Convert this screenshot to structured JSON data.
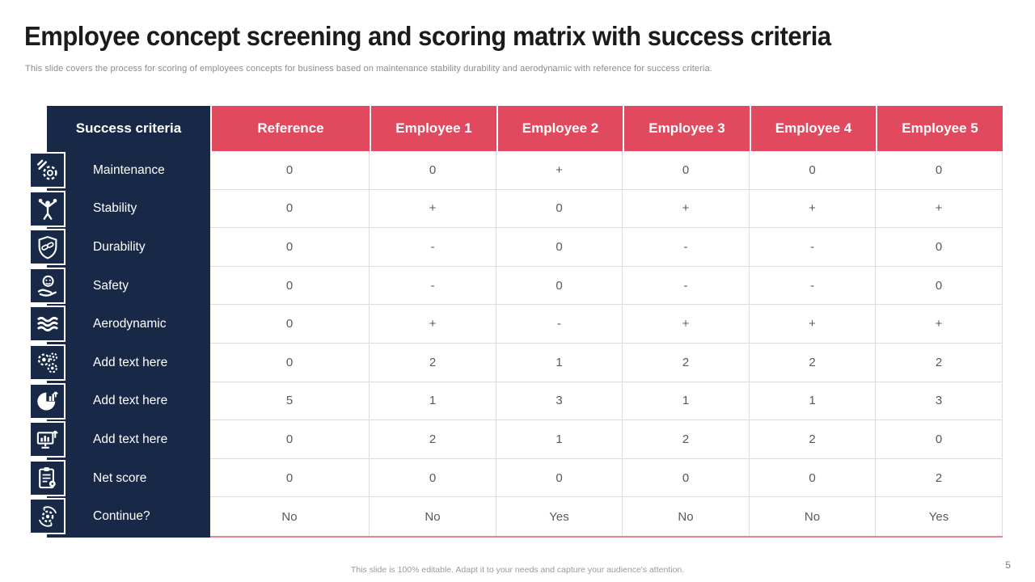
{
  "slide": {
    "title": "Employee concept screening and scoring matrix with success criteria",
    "subtitle": "This slide covers the process for scoring of employees concepts for business based on maintenance stability durability and aerodynamic with reference for success criteria.",
    "footer": "This slide is 100% editable.  Adapt it to your needs and capture your audience's attention.",
    "page_number": "5"
  },
  "colors": {
    "navy": "#172947",
    "red": "#e0495e",
    "body_text": "#595959",
    "gridline": "#dcdcdc",
    "table_bottom_line": "#e8828f"
  },
  "chart_data": {
    "type": "table",
    "title": "Employee concept screening and scoring matrix with success criteria",
    "columns": [
      "Success criteria",
      "Reference",
      "Employee 1",
      "Employee 2",
      "Employee 3",
      "Employee 4",
      "Employee 5"
    ],
    "rows": [
      {
        "icon": "maintenance-icon",
        "label": "Maintenance",
        "values": [
          "0",
          "0",
          "+",
          "0",
          "0",
          "0"
        ]
      },
      {
        "icon": "stability-icon",
        "label": "Stability",
        "values": [
          "0",
          "+",
          "0",
          "+",
          "+",
          "+"
        ]
      },
      {
        "icon": "durability-icon",
        "label": "Durability",
        "values": [
          "0",
          "-",
          "0",
          "-",
          "-",
          "0"
        ]
      },
      {
        "icon": "safety-icon",
        "label": "Safety",
        "values": [
          "0",
          "-",
          "0",
          "-",
          "-",
          "0"
        ]
      },
      {
        "icon": "aerodynamic-icon",
        "label": "Aerodynamic",
        "values": [
          "0",
          "+",
          "-",
          "+",
          "+",
          "+"
        ]
      },
      {
        "icon": "gears-icon",
        "label": "Add text here",
        "values": [
          "0",
          "2",
          "1",
          "2",
          "2",
          "2"
        ]
      },
      {
        "icon": "pie-chart-icon",
        "label": "Add text here",
        "values": [
          "5",
          "1",
          "3",
          "1",
          "1",
          "3"
        ]
      },
      {
        "icon": "presentation-chart-icon",
        "label": "Add text here",
        "values": [
          "0",
          "2",
          "1",
          "2",
          "2",
          "0"
        ]
      },
      {
        "icon": "clipboard-icon",
        "label": "Net score",
        "values": [
          "0",
          "0",
          "0",
          "0",
          "0",
          "2"
        ]
      },
      {
        "icon": "process-gear-icon",
        "label": "Continue?",
        "values": [
          "No",
          "No",
          "Yes",
          "No",
          "No",
          "Yes"
        ]
      }
    ]
  }
}
